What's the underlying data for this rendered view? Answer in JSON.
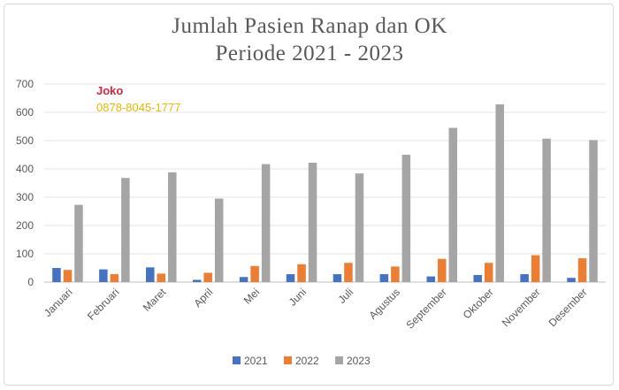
{
  "chart_data": {
    "type": "bar",
    "title_line1": "Jumlah Pasien Ranap dan OK",
    "title_line2": "Periode 2021 - 2023",
    "categories": [
      "Januari",
      "Februari",
      "Maret",
      "April",
      "Mei",
      "Juni",
      "Juli",
      "Agustus",
      "September",
      "Oktober",
      "November",
      "Desember"
    ],
    "series": [
      {
        "name": "2021",
        "color": "#4472c4",
        "values": [
          50,
          45,
          52,
          8,
          18,
          28,
          28,
          28,
          20,
          25,
          28,
          15
        ]
      },
      {
        "name": "2022",
        "color": "#ed7d31",
        "values": [
          43,
          28,
          30,
          33,
          57,
          63,
          68,
          55,
          82,
          68,
          95,
          84
        ]
      },
      {
        "name": "2023",
        "color": "#a5a5a5",
        "values": [
          273,
          368,
          388,
          295,
          417,
          422,
          384,
          450,
          545,
          628,
          507,
          502
        ]
      }
    ],
    "ylim": [
      0,
      700
    ],
    "yticks": [
      0,
      100,
      200,
      300,
      400,
      500,
      600,
      700
    ],
    "grid": true,
    "legend_position": "bottom"
  },
  "watermark": {
    "name": "Joko",
    "phone": "0878-8045-1777"
  }
}
